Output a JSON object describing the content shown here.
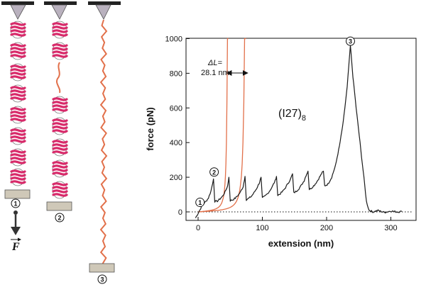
{
  "panel": {
    "force_label": "F",
    "steps": [
      "1",
      "2",
      "3"
    ]
  },
  "chart_data": {
    "type": "line",
    "xlabel": "extension (nm)",
    "ylabel": "force (pN)",
    "xlim": [
      -10,
      330
    ],
    "ylim": [
      -50,
      1000
    ],
    "xticks": [
      0,
      100,
      200,
      300
    ],
    "yticks": [
      0,
      200,
      400,
      600,
      800,
      1000
    ],
    "protein_label": "(I27)",
    "protein_subscript": "8",
    "delta_label": "ΔL=",
    "delta_value": "28.1 nm",
    "peak_markers": [
      {
        "label": "1",
        "x": 3,
        "y": 55
      },
      {
        "label": "2",
        "x": 25,
        "y": 230
      },
      {
        "label": "3",
        "x": 237,
        "y": 985
      }
    ],
    "baseline": 0,
    "colors": {
      "trace": "#1a1a1a",
      "wlc": "#e2704a",
      "protein": "#d82a6a",
      "polymer": "#e2704a"
    },
    "peaks": [
      {
        "x": 24,
        "y": 190
      },
      {
        "x": 48,
        "y": 200
      },
      {
        "x": 73,
        "y": 205
      },
      {
        "x": 98,
        "y": 200
      },
      {
        "x": 122,
        "y": 205
      },
      {
        "x": 147,
        "y": 220
      },
      {
        "x": 171,
        "y": 235
      },
      {
        "x": 195,
        "y": 235
      },
      {
        "x": 237,
        "y": 960
      }
    ],
    "wlc_fits": [
      {
        "contour_nm": 48
      },
      {
        "contour_nm": 76
      }
    ],
    "series": [
      {
        "values": [
          [
            -4,
            -35
          ],
          [
            0,
            -8
          ],
          [
            4,
            20
          ],
          [
            8,
            45
          ],
          [
            12,
            60
          ],
          [
            16,
            80
          ],
          [
            20,
            120
          ],
          [
            24,
            190
          ],
          [
            26,
            60
          ],
          [
            30,
            62
          ],
          [
            34,
            75
          ],
          [
            38,
            90
          ],
          [
            42,
            115
          ],
          [
            46,
            150
          ],
          [
            48,
            200
          ],
          [
            50,
            65
          ],
          [
            54,
            70
          ],
          [
            58,
            80
          ],
          [
            62,
            95
          ],
          [
            66,
            115
          ],
          [
            70,
            145
          ],
          [
            73,
            205
          ],
          [
            75,
            70
          ],
          [
            79,
            78
          ],
          [
            83,
            90
          ],
          [
            87,
            110
          ],
          [
            91,
            135
          ],
          [
            95,
            165
          ],
          [
            98,
            200
          ],
          [
            100,
            80
          ],
          [
            104,
            90
          ],
          [
            108,
            105
          ],
          [
            112,
            125
          ],
          [
            116,
            150
          ],
          [
            120,
            180
          ],
          [
            122,
            205
          ],
          [
            124,
            95
          ],
          [
            128,
            105
          ],
          [
            132,
            120
          ],
          [
            136,
            140
          ],
          [
            140,
            165
          ],
          [
            144,
            190
          ],
          [
            147,
            220
          ],
          [
            149,
            110
          ],
          [
            153,
            120
          ],
          [
            157,
            135
          ],
          [
            161,
            155
          ],
          [
            165,
            180
          ],
          [
            168,
            210
          ],
          [
            171,
            235
          ],
          [
            173,
            130
          ],
          [
            177,
            140
          ],
          [
            181,
            155
          ],
          [
            185,
            175
          ],
          [
            189,
            200
          ],
          [
            192,
            220
          ],
          [
            195,
            235
          ],
          [
            197,
            150
          ],
          [
            202,
            160
          ],
          [
            208,
            200
          ],
          [
            214,
            270
          ],
          [
            220,
            380
          ],
          [
            226,
            520
          ],
          [
            232,
            720
          ],
          [
            237,
            960
          ],
          [
            241,
            780
          ],
          [
            246,
            600
          ],
          [
            252,
            400
          ],
          [
            258,
            200
          ],
          [
            262,
            60
          ],
          [
            266,
            10
          ],
          [
            272,
            0
          ],
          [
            280,
            8
          ],
          [
            290,
            -3
          ],
          [
            300,
            5
          ],
          [
            310,
            0
          ],
          [
            317,
            2
          ]
        ]
      }
    ]
  }
}
